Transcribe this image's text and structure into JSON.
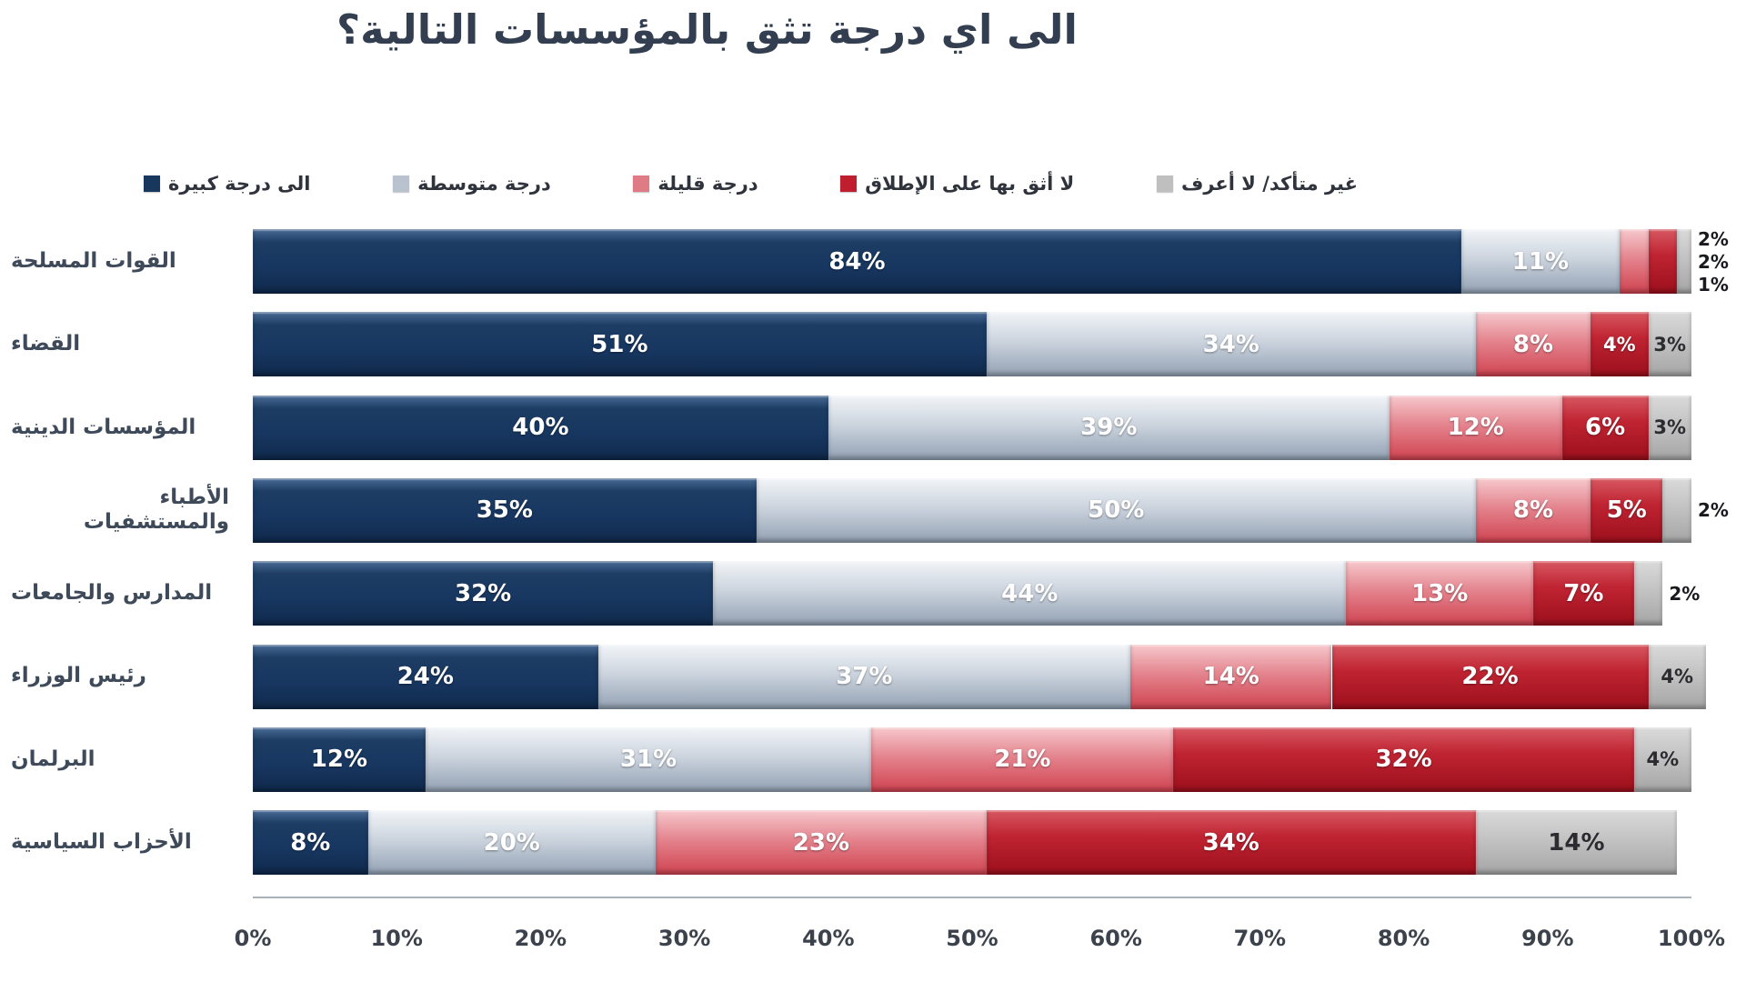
{
  "title": "الى اي درجة تثق بالمؤسسات التالية؟",
  "colors": {
    "title_text": "#333f50",
    "category_text": "#3e4a59",
    "axis_text": "#3c424c",
    "navy": "#17375d",
    "silver": "#b9c3d0",
    "pink": "#df7b85",
    "dark_red": "#be1e2d",
    "gray": "#bfbfbf",
    "background": "#ffffff"
  },
  "chart_data": {
    "type": "bar",
    "subtype": "horizontal-stacked-100",
    "title": "الى اي درجة تثق بالمؤسسات التالية؟",
    "legend_position": "top",
    "grid": false,
    "xlim": [
      0,
      100
    ],
    "x_ticks": [
      "0%",
      "10%",
      "20%",
      "30%",
      "40%",
      "50%",
      "60%",
      "70%",
      "80%",
      "90%",
      "100%"
    ],
    "series": [
      {
        "name": "الى درجة كبيرة",
        "color": "#17375d"
      },
      {
        "name": "درجة متوسطة",
        "color": "#b9c3d0"
      },
      {
        "name": "درجة قليلة",
        "color": "#df7b85"
      },
      {
        "name": "لا أثق بها على الإطلاق",
        "color": "#be1e2d"
      },
      {
        "name": "غير متأكد/ لا أعرف",
        "color": "#bfbfbf"
      }
    ],
    "categories": [
      "القوات المسلحة",
      "القضاء",
      "المؤسسات الدينية",
      "الأطباء والمستشفيات",
      "المدارس والجامعات",
      "رئيس الوزراء",
      "البرلمان",
      "الأحزاب السياسية"
    ],
    "rows": [
      {
        "category": "القوات المسلحة",
        "values": [
          84,
          11,
          2,
          2,
          1
        ],
        "labels": [
          "84%",
          "11%",
          "2%",
          "2%",
          "1%"
        ],
        "label_pos": [
          "in",
          "in",
          "out",
          "out",
          "out"
        ]
      },
      {
        "category": "القضاء",
        "values": [
          51,
          34,
          8,
          4,
          3
        ],
        "labels": [
          "51%",
          "34%",
          "8%",
          "4%",
          "3%"
        ],
        "label_pos": [
          "in",
          "in",
          "in",
          "in",
          "in"
        ]
      },
      {
        "category": "المؤسسات الدينية",
        "values": [
          40,
          39,
          12,
          6,
          3
        ],
        "labels": [
          "40%",
          "39%",
          "12%",
          "6%",
          "3%"
        ],
        "label_pos": [
          "in",
          "in",
          "in",
          "in",
          "in"
        ]
      },
      {
        "category": "الأطباء والمستشفيات",
        "values": [
          35,
          50,
          8,
          5,
          2
        ],
        "labels": [
          "35%",
          "50%",
          "8%",
          "5%",
          "2%"
        ],
        "label_pos": [
          "in",
          "in",
          "in",
          "in",
          "out"
        ]
      },
      {
        "category": "المدارس والجامعات",
        "values": [
          32,
          44,
          13,
          7,
          2
        ],
        "labels": [
          "32%",
          "44%",
          "13%",
          "7%",
          "2%"
        ],
        "label_pos": [
          "in",
          "in",
          "in",
          "in",
          "out"
        ]
      },
      {
        "category": "رئيس الوزراء",
        "values": [
          24,
          37,
          14,
          22,
          4
        ],
        "labels": [
          "24%",
          "37%",
          "14%",
          "22%",
          "4%"
        ],
        "label_pos": [
          "in",
          "in",
          "in",
          "in",
          "in"
        ]
      },
      {
        "category": "البرلمان",
        "values": [
          12,
          31,
          21,
          32,
          4
        ],
        "labels": [
          "12%",
          "31%",
          "21%",
          "32%",
          "4%"
        ],
        "label_pos": [
          "in",
          "in",
          "in",
          "in",
          "in"
        ]
      },
      {
        "category": "الأحزاب السياسية",
        "values": [
          8,
          20,
          23,
          34,
          14
        ],
        "labels": [
          "8%",
          "20%",
          "23%",
          "34%",
          "14%"
        ],
        "label_pos": [
          "in",
          "in",
          "in",
          "in",
          "in"
        ]
      }
    ]
  }
}
